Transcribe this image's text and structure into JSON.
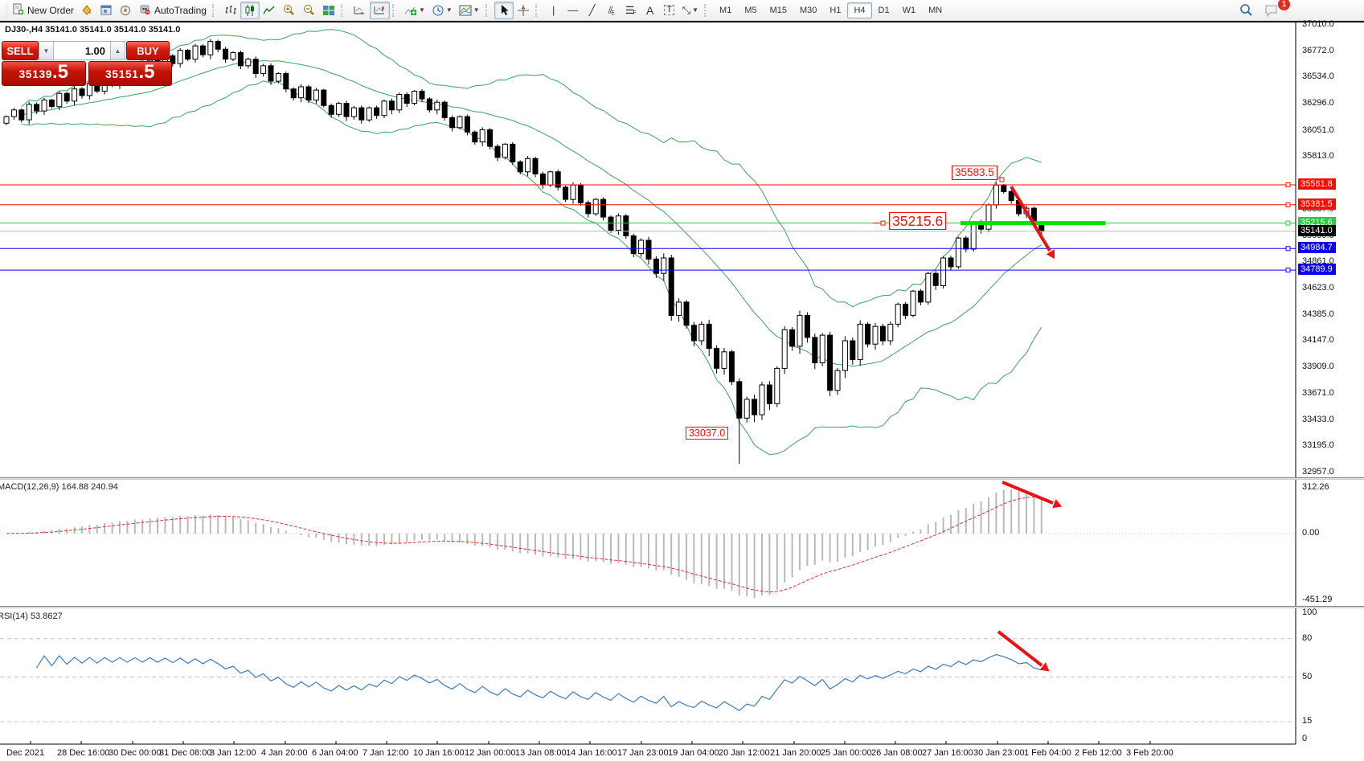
{
  "toolbar": {
    "new_order": "New Order",
    "autotrading": "AutoTrading",
    "timeframes": [
      "M1",
      "M5",
      "M15",
      "M30",
      "H1",
      "H4",
      "D1",
      "W1",
      "MN"
    ],
    "active_timeframe": "H4",
    "notification_badge": "1",
    "icon_names": [
      "new-order",
      "styles-bucket",
      "terminal",
      "signals",
      "autotrading",
      "bar-chart",
      "candlestick-chart",
      "line-chart",
      "zoom-in",
      "zoom-out",
      "tile-windows",
      "auto-scroll",
      "chart-shift",
      "indicators",
      "periods",
      "templates",
      "cursor",
      "crosshair",
      "vertical-line",
      "horizontal-line",
      "trend-line",
      "equidistant-channel",
      "fibonacci",
      "text",
      "text-label",
      "arrows",
      "search",
      "chat"
    ]
  },
  "chart": {
    "ohlc_header": "DJ30-,H4 35141.0 35141.0 35141.0 35141.0",
    "one_click": {
      "sell_label": "SELL",
      "buy_label": "BUY",
      "volume": "1.00",
      "sell_price_int": "35139",
      "sell_price_dec": ".5",
      "buy_price_int": "35151",
      "buy_price_dec": ".5"
    },
    "axis_ticks": [
      "37010.0",
      "36772.0",
      "36534.0",
      "36296.0",
      "36051.0",
      "35813.0",
      "35575.0",
      "35337.0",
      "35099.0",
      "34861.0",
      "34623.0",
      "34385.0",
      "34147.0",
      "33909.0",
      "33671.0",
      "33433.0",
      "33195.0",
      "32957.0"
    ],
    "price_tags": [
      {
        "value": "35561.8",
        "bg": "#f60e02"
      },
      {
        "value": "35381.5",
        "bg": "#f60e02"
      },
      {
        "value": "35215.6",
        "bg": "#2cca41"
      },
      {
        "value": "35141.0",
        "bg": "#000000"
      },
      {
        "value": "34984.7",
        "bg": "#0b02f2"
      },
      {
        "value": "34789.9",
        "bg": "#0b02f2"
      }
    ],
    "hlines": [
      {
        "price": 35561.8,
        "color": "#f60e02",
        "square": true
      },
      {
        "price": 35381.5,
        "color": "#f60e02",
        "square": true
      },
      {
        "price": 35215.6,
        "color": "#2cca41",
        "square": true
      },
      {
        "price": 35141.0,
        "color": "#b9b9b9",
        "square": false
      },
      {
        "price": 34984.7,
        "color": "#0b02f2",
        "square": true
      },
      {
        "price": 34789.9,
        "color": "#0b02f2",
        "square": true
      }
    ],
    "trend_segment": {
      "price": 35215.6,
      "color": "#00e400"
    },
    "annotations": [
      {
        "text": "35583.5"
      },
      {
        "text": "35215.6"
      },
      {
        "text": "33037.0"
      }
    ]
  },
  "macd": {
    "label": "MACD(12,26,9) 164.88 240.94",
    "axis_labels": [
      "312.26",
      "0.00",
      "-451.29"
    ]
  },
  "rsi": {
    "label": "RSI(14) 53.8627",
    "axis_labels": [
      "100",
      "80",
      "50",
      "15",
      "0"
    ]
  },
  "time_axis": [
    "Dec 2021",
    "28 Dec 16:00",
    "30 Dec 00:00",
    "31 Dec 08:00",
    "3 Jan 12:00",
    "4 Jan 20:00",
    "6 Jan 04:00",
    "7 Jan 12:00",
    "10 Jan 16:00",
    "12 Jan 00:00",
    "13 Jan 08:00",
    "14 Jan 16:00",
    "17 Jan 23:00",
    "19 Jan 04:00",
    "20 Jan 12:00",
    "21 Jan 20:00",
    "25 Jan 00:00",
    "26 Jan 08:00",
    "27 Jan 16:00",
    "30 Jan 23:00",
    "1 Feb 04:00",
    "2 Feb 12:00",
    "3 Feb 20:00"
  ],
  "chart_data": {
    "type": "candlestick",
    "symbol": "DJ30-",
    "timeframe": "H4",
    "y_axis_range": [
      32957,
      37010
    ],
    "closes": [
      36180,
      36240,
      36150,
      36290,
      36230,
      36330,
      36270,
      36390,
      36320,
      36430,
      36370,
      36480,
      36410,
      36540,
      36470,
      36590,
      36520,
      36640,
      36570,
      36690,
      36620,
      36730,
      36660,
      36780,
      36700,
      36820,
      36740,
      36860,
      36790,
      36700,
      36760,
      36640,
      36700,
      36570,
      36640,
      36500,
      36570,
      36430,
      36350,
      36450,
      36330,
      36420,
      36280,
      36200,
      36300,
      36180,
      36260,
      36150,
      36260,
      36190,
      36320,
      36240,
      36380,
      36300,
      36410,
      36340,
      36240,
      36310,
      36170,
      36080,
      36180,
      36040,
      35950,
      36060,
      35910,
      35810,
      35930,
      35770,
      35680,
      35800,
      35660,
      35560,
      35680,
      35540,
      35430,
      35560,
      35400,
      35300,
      35430,
      35270,
      35150,
      35280,
      35100,
      34940,
      35060,
      34890,
      34760,
      34900,
      34380,
      34500,
      34290,
      34150,
      34300,
      34080,
      33900,
      34050,
      33780,
      33450,
      33620,
      33480,
      33750,
      33580,
      33900,
      34250,
      34100,
      34380,
      34180,
      33950,
      34200,
      33700,
      33880,
      34150,
      33980,
      34300,
      34120,
      34280,
      34150,
      34300,
      34480,
      34380,
      34600,
      34500,
      34760,
      34650,
      34900,
      34820,
      35080,
      34980,
      35220,
      35160,
      35380,
      35560,
      35500,
      35420,
      35300,
      35350,
      35200,
      35141
    ],
    "low_override": {
      "97": 33037.0
    },
    "high_override": {
      "131": 35583.5
    },
    "indicators": {
      "bands": "Bollinger(20,2) green",
      "macd": "MACD(12,26,9)",
      "rsi": "RSI(14)"
    },
    "key_levels": {
      "resistance": [
        35561.8,
        35381.5
      ],
      "support": [
        34984.7,
        34789.9
      ],
      "green_level": 35215.6,
      "swing_high": 35583.5,
      "swing_low": 33037.0,
      "current_price": 35141.0,
      "bid": 35139.5,
      "ask": 35151.5
    }
  }
}
